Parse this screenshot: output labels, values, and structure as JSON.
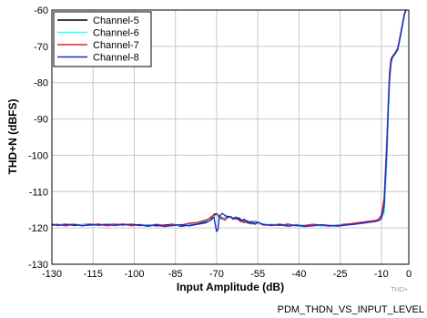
{
  "chart_data": {
    "type": "line",
    "xlabel": "Input Amplitude (dB)",
    "ylabel": "THD+N (dBFS)",
    "xlim": [
      -130,
      0
    ],
    "ylim": [
      -130,
      -60
    ],
    "x_ticks": [
      "-130",
      "-115",
      "-100",
      "-85",
      "-70",
      "-55",
      "-40",
      "-25",
      "-10",
      "0"
    ],
    "x_tick_values": [
      -130,
      -115,
      -100,
      -85,
      -70,
      -55,
      -40,
      -25,
      -10,
      0
    ],
    "y_ticks": [
      "-60",
      "-70",
      "-80",
      "-90",
      "-100",
      "-110",
      "-120",
      "-130"
    ],
    "y_tick_values": [
      -60,
      -70,
      -80,
      -90,
      -100,
      -110,
      -120,
      -130
    ],
    "grid": true,
    "legend_position": "top-left",
    "series": [
      {
        "name": "Channel-5",
        "color": "#000000",
        "x": [
          -130,
          -128,
          -125,
          -122,
          -119,
          -116,
          -113,
          -110,
          -107,
          -104,
          -101,
          -98,
          -95,
          -92,
          -89,
          -86,
          -83,
          -80,
          -77,
          -74,
          -72,
          -71,
          -70,
          -69,
          -68,
          -67,
          -66,
          -65,
          -64,
          -63,
          -62,
          -61,
          -60,
          -59,
          -58,
          -57,
          -56,
          -55,
          -53,
          -50,
          -47,
          -44,
          -41,
          -38,
          -35,
          -32,
          -29,
          -26,
          -23,
          -20,
          -17,
          -14,
          -12,
          -11,
          -10,
          -9,
          -8,
          -7.5,
          -7,
          -6.5,
          -6,
          -5.5,
          -5,
          -4.5,
          -4,
          -3.5,
          -3,
          -2.5,
          -2,
          -1.5,
          -1
        ],
        "values": [
          -119,
          -119.2,
          -119,
          -119.3,
          -119.1,
          -119,
          -119.2,
          -119.1,
          -119,
          -119.2,
          -119,
          -119.3,
          -119.1,
          -119.4,
          -119.2,
          -119,
          -119.5,
          -119.2,
          -118.8,
          -118.2,
          -117,
          -116.5,
          -116.3,
          -117,
          -117.5,
          -117.2,
          -116.8,
          -117,
          -117.3,
          -117.6,
          -117.2,
          -117.8,
          -118.5,
          -118,
          -118.4,
          -118.9,
          -118.2,
          -118.6,
          -119,
          -119.2,
          -119,
          -119.3,
          -119.2,
          -119.5,
          -119.1,
          -119.3,
          -119.4,
          -119.2,
          -119,
          -118.8,
          -118.5,
          -118.2,
          -118,
          -117.8,
          -117,
          -115,
          -100,
          -88,
          -78,
          -74,
          -73,
          -72.5,
          -72,
          -71.5,
          -71,
          -69,
          -67,
          -65,
          -63,
          -61,
          -60
        ]
      },
      {
        "name": "Channel-6",
        "color": "#33ffff",
        "x": [
          -130,
          -128,
          -125,
          -122,
          -119,
          -116,
          -113,
          -110,
          -107,
          -104,
          -101,
          -98,
          -95,
          -92,
          -89,
          -86,
          -83,
          -80,
          -77,
          -74,
          -72,
          -71,
          -70,
          -69,
          -68,
          -67,
          -66,
          -65,
          -64,
          -63,
          -62,
          -61,
          -60,
          -59,
          -58,
          -57,
          -56,
          -55,
          -53,
          -50,
          -47,
          -44,
          -41,
          -38,
          -35,
          -32,
          -29,
          -26,
          -23,
          -20,
          -17,
          -14,
          -12,
          -11,
          -10,
          -9,
          -8,
          -7.5,
          -7,
          -6.5,
          -6,
          -5.5,
          -5,
          -4.5,
          -4,
          -3.5,
          -3,
          -2.5,
          -2,
          -1.5,
          -1
        ],
        "values": [
          -119.1,
          -119,
          -119.2,
          -119.1,
          -119,
          -119.3,
          -119.1,
          -119,
          -119.2,
          -119.1,
          -119.3,
          -119,
          -119.2,
          -119.1,
          -119.3,
          -119.4,
          -119.2,
          -119,
          -118.6,
          -118,
          -117.2,
          -116.8,
          -116.5,
          -117.2,
          -117.8,
          -117,
          -117,
          -117.2,
          -117.5,
          -117.4,
          -117.6,
          -117.9,
          -118.2,
          -118.3,
          -118.1,
          -118.7,
          -118.4,
          -118.8,
          -119.1,
          -119,
          -119.2,
          -119.4,
          -119,
          -119.3,
          -119.2,
          -119.5,
          -119.3,
          -119.1,
          -119.2,
          -118.9,
          -118.6,
          -118.3,
          -118.1,
          -117.9,
          -117.2,
          -116,
          -102,
          -90,
          -80,
          -75,
          -73.2,
          -72.7,
          -72.2,
          -71.6,
          -70.8,
          -69.2,
          -67.2,
          -65.2,
          -63.2,
          -61.2,
          -60.2
        ]
      },
      {
        "name": "Channel-7",
        "color": "#e0242a",
        "x": [
          -130,
          -128,
          -125,
          -122,
          -119,
          -116,
          -113,
          -110,
          -107,
          -104,
          -101,
          -98,
          -95,
          -92,
          -89,
          -86,
          -83,
          -80,
          -77,
          -74,
          -72,
          -71,
          -70,
          -69,
          -68,
          -67,
          -66,
          -65,
          -64,
          -63,
          -62,
          -61,
          -60,
          -59,
          -58,
          -57,
          -56,
          -55,
          -53,
          -50,
          -47,
          -44,
          -41,
          -38,
          -35,
          -32,
          -29,
          -26,
          -23,
          -20,
          -17,
          -14,
          -12,
          -11,
          -10,
          -9,
          -8,
          -7.5,
          -7,
          -6.5,
          -6,
          -5.5,
          -5,
          -4.5,
          -4,
          -3.5,
          -3,
          -2.5,
          -2,
          -1.5,
          -1
        ],
        "values": [
          -119.3,
          -119,
          -119.4,
          -119,
          -119.3,
          -119.2,
          -118.9,
          -119.4,
          -119.1,
          -118.9,
          -119.4,
          -119.1,
          -119.6,
          -119,
          -119.3,
          -119.1,
          -119.2,
          -118.7,
          -118.5,
          -117.8,
          -117.3,
          -116.2,
          -116,
          -116.8,
          -117.2,
          -117.9,
          -117.1,
          -116.9,
          -117.6,
          -117.2,
          -117.8,
          -118.3,
          -117.9,
          -118.6,
          -118.2,
          -118.5,
          -119,
          -118.4,
          -119.2,
          -119.1,
          -119.3,
          -118.9,
          -119.4,
          -119.3,
          -119,
          -119.2,
          -119.5,
          -119.3,
          -119.1,
          -118.7,
          -118.4,
          -118.1,
          -117.9,
          -117.6,
          -116.5,
          -112,
          -96,
          -86,
          -77,
          -73.5,
          -72.8,
          -72.3,
          -71.8,
          -71.2,
          -70.5,
          -68.5,
          -66.5,
          -64.5,
          -62.5,
          -60.8,
          -60
        ]
      },
      {
        "name": "Channel-8",
        "color": "#1f2ad0",
        "x": [
          -130,
          -128,
          -125,
          -122,
          -119,
          -116,
          -113,
          -110,
          -107,
          -104,
          -101,
          -98,
          -95,
          -92,
          -89,
          -86,
          -83,
          -80,
          -77,
          -74,
          -72,
          -71,
          -70.5,
          -70,
          -69.5,
          -69,
          -68,
          -67,
          -66,
          -65,
          -64,
          -63,
          -62,
          -61,
          -60,
          -59,
          -58,
          -57,
          -56,
          -55,
          -53,
          -50,
          -47,
          -44,
          -41,
          -38,
          -35,
          -32,
          -29,
          -26,
          -23,
          -20,
          -17,
          -14,
          -12,
          -11,
          -10,
          -9,
          -8,
          -7.5,
          -7,
          -6.5,
          -6,
          -5.5,
          -5,
          -4.5,
          -4,
          -3.5,
          -3,
          -2.5,
          -2,
          -1.5,
          -1
        ],
        "values": [
          -119,
          -119.3,
          -119.1,
          -119,
          -119.4,
          -119.1,
          -119.2,
          -119,
          -119.3,
          -119.1,
          -119,
          -119.2,
          -119.4,
          -119.2,
          -119.6,
          -119.3,
          -119.1,
          -119.4,
          -119,
          -118.6,
          -117.8,
          -117,
          -119,
          -121,
          -120.5,
          -116.8,
          -116,
          -116.5,
          -117,
          -116.8,
          -117.4,
          -117,
          -117.5,
          -118,
          -117.6,
          -118.3,
          -118.8,
          -118.2,
          -118.9,
          -118.4,
          -119.1,
          -119.3,
          -119.1,
          -119.5,
          -119.2,
          -119.6,
          -119.4,
          -119.1,
          -119.3,
          -119.5,
          -119.2,
          -119,
          -118.7,
          -118.4,
          -118.2,
          -118,
          -117.5,
          -114,
          -98,
          -87,
          -79,
          -74.5,
          -73.1,
          -72.6,
          -72.1,
          -71.4,
          -70.6,
          -68.8,
          -66.8,
          -64.8,
          -62.8,
          -60.9,
          -60
        ]
      }
    ]
  },
  "watermark": "THD+",
  "footer_caption": "PDM_THDN_VS_INPUT_LEVEL"
}
